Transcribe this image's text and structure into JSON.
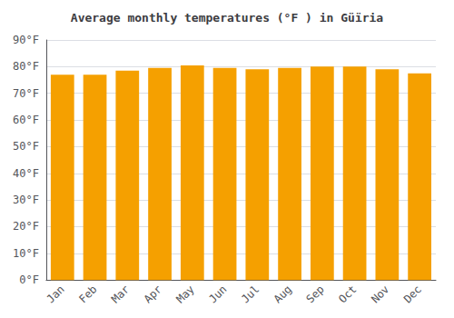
{
  "chart_data": {
    "type": "bar",
    "title": "Average monthly temperatures (°F ) in Güïria",
    "categories": [
      "Jan",
      "Feb",
      "Mar",
      "Apr",
      "May",
      "Jun",
      "Jul",
      "Aug",
      "Sep",
      "Oct",
      "Nov",
      "Dec"
    ],
    "values": [
      77,
      77,
      78.5,
      79.5,
      80.5,
      79.5,
      79,
      79.5,
      80,
      80,
      79,
      77.5
    ],
    "color": "#F5A000",
    "ylim": [
      0,
      90
    ],
    "yticks": [
      {
        "value": 0,
        "label": "0°F"
      },
      {
        "value": 10,
        "label": "10°F"
      },
      {
        "value": 20,
        "label": "20°F"
      },
      {
        "value": 30,
        "label": "30°F"
      },
      {
        "value": 40,
        "label": "40°F"
      },
      {
        "value": 50,
        "label": "50°F"
      },
      {
        "value": 60,
        "label": "60°F"
      },
      {
        "value": 70,
        "label": "70°F"
      },
      {
        "value": 80,
        "label": "80°F"
      },
      {
        "value": 90,
        "label": "90°F"
      }
    ],
    "grid": true
  }
}
